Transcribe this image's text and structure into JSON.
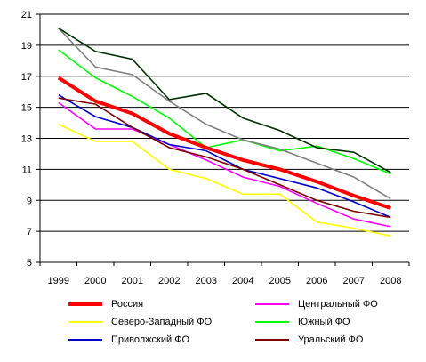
{
  "chart_data": {
    "type": "line",
    "title": "",
    "xlabel": "",
    "ylabel": "",
    "x": [
      "1999",
      "2000",
      "2001",
      "2002",
      "2003",
      "2004",
      "2005",
      "2006",
      "2007",
      "2008"
    ],
    "ylim": [
      5,
      21
    ],
    "yticks": [
      5,
      7,
      9,
      11,
      13,
      15,
      17,
      19,
      21
    ],
    "grid": "horizontal",
    "legend_position": "bottom",
    "series": [
      {
        "name": "Россия",
        "color": "#ff0000",
        "emphasis": true,
        "values": [
          16.9,
          15.4,
          14.6,
          13.3,
          12.4,
          11.6,
          11.0,
          10.2,
          9.3,
          8.5
        ]
      },
      {
        "name": "Центральный ФО",
        "color": "#ff00ff",
        "values": [
          15.3,
          13.6,
          13.6,
          12.6,
          11.6,
          10.5,
          9.9,
          8.8,
          7.8,
          7.3
        ]
      },
      {
        "name": "Северо-Западный ФО",
        "color": "#ffff00",
        "values": [
          13.9,
          12.8,
          12.8,
          11.0,
          10.4,
          9.4,
          9.4,
          7.6,
          7.2,
          6.7
        ]
      },
      {
        "name": "Южный ФО",
        "color": "#00ff00",
        "values": [
          18.7,
          16.9,
          15.7,
          14.3,
          12.4,
          12.9,
          12.2,
          12.5,
          11.7,
          10.7
        ]
      },
      {
        "name": "Приволжский ФО",
        "color": "#0000cc",
        "values": [
          15.8,
          14.4,
          13.7,
          12.6,
          12.2,
          11.0,
          10.4,
          9.8,
          8.9,
          7.9
        ]
      },
      {
        "name": "Уральский ФО",
        "color": "#800000",
        "values": [
          15.6,
          15.2,
          13.7,
          12.4,
          11.8,
          11.0,
          10.0,
          9.0,
          8.3,
          7.9
        ]
      },
      {
        "color": "#808080",
        "in_legend": false,
        "values": [
          20.1,
          17.6,
          17.1,
          15.4,
          13.9,
          12.9,
          12.3,
          11.4,
          10.5,
          9.1
        ]
      },
      {
        "color": "#003300",
        "in_legend": false,
        "values": [
          20.1,
          18.6,
          18.1,
          15.5,
          15.9,
          14.3,
          13.5,
          12.4,
          12.1,
          10.8
        ]
      }
    ]
  }
}
